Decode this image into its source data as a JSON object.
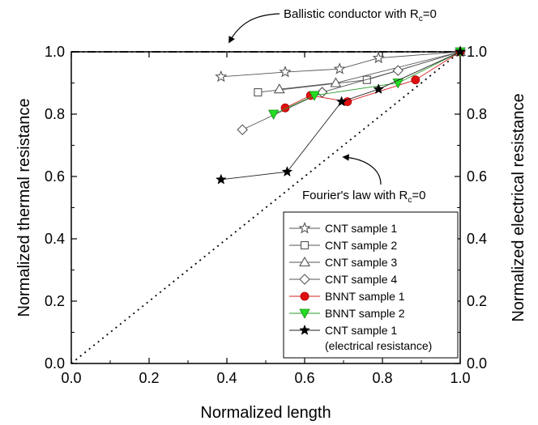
{
  "chart_data": {
    "type": "scatter",
    "xlabel": "Normalized length",
    "ylabel": "Normalized thermal resistance",
    "y2label": "Normalized electrical resistance",
    "xlim": [
      0.0,
      1.0
    ],
    "ylim": [
      0.0,
      1.0
    ],
    "x_ticks": [
      "0.0",
      "0.2",
      "0.4",
      "0.6",
      "0.8",
      "1.0"
    ],
    "y_ticks": [
      "0.0",
      "0.2",
      "0.4",
      "0.6",
      "0.8",
      "1.0"
    ],
    "y2_ticks": [
      "0.0",
      "0.2",
      "0.4",
      "0.6",
      "0.8",
      "1.0"
    ],
    "grid": false,
    "legend_position": "bottom-right",
    "series": [
      {
        "name": "CNT sample 1",
        "marker": "open-star",
        "color": "#555555",
        "fill": "none",
        "x": [
          0.385,
          0.55,
          0.69,
          0.79,
          1.0
        ],
        "y": [
          0.92,
          0.935,
          0.945,
          0.98,
          1.0
        ]
      },
      {
        "name": "CNT sample 2",
        "marker": "open-square",
        "color": "#555555",
        "fill": "none",
        "x": [
          0.48,
          0.76,
          1.0
        ],
        "y": [
          0.87,
          0.91,
          1.0
        ]
      },
      {
        "name": "CNT sample 3",
        "marker": "open-triangle-up",
        "color": "#555555",
        "fill": "none",
        "x": [
          0.535,
          0.68,
          1.0
        ],
        "y": [
          0.88,
          0.9,
          1.0
        ]
      },
      {
        "name": "CNT sample 4",
        "marker": "open-diamond",
        "color": "#555555",
        "fill": "none",
        "x": [
          0.44,
          0.645,
          0.84,
          1.0
        ],
        "y": [
          0.75,
          0.87,
          0.94,
          1.0
        ]
      },
      {
        "name": "BNNT sample 1",
        "marker": "filled-circle",
        "color": "#d42020",
        "fill": "#e01010",
        "x": [
          0.55,
          0.615,
          0.71,
          0.885,
          1.0
        ],
        "y": [
          0.82,
          0.86,
          0.84,
          0.91,
          1.0
        ]
      },
      {
        "name": "BNNT sample 2",
        "marker": "filled-triangle-down",
        "color": "#2a9d2a",
        "fill": "#22dd22",
        "x": [
          0.52,
          0.625,
          0.84,
          1.0
        ],
        "y": [
          0.8,
          0.86,
          0.9,
          1.0
        ]
      },
      {
        "name": "CNT sample 1",
        "name_line2": "(electrical resistance)",
        "marker": "filled-star",
        "color": "#222222",
        "fill": "#000000",
        "x": [
          0.385,
          0.555,
          0.695,
          0.79,
          1.0
        ],
        "y": [
          0.59,
          0.615,
          0.84,
          0.88,
          1.0
        ]
      }
    ],
    "reference_lines": [
      {
        "label_parts": [
          "Ballistic conductor with R",
          "c",
          "=0"
        ],
        "style": "dash-dot",
        "x": [
          0.0,
          1.0
        ],
        "y": [
          1.0,
          1.0
        ]
      },
      {
        "label_parts": [
          "Fourier's law with R",
          "c",
          "=0"
        ],
        "style": "dotted",
        "x": [
          0.0,
          1.0
        ],
        "y": [
          0.0,
          1.0
        ]
      }
    ]
  }
}
